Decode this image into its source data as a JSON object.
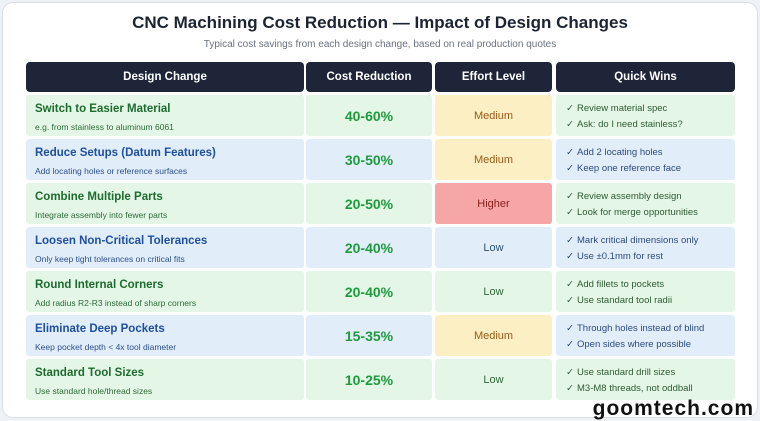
{
  "header": {
    "title": "CNC Machining Cost Reduction — Impact of Design Changes",
    "subtitle": "Typical cost savings from each design change, based on real production quotes"
  },
  "columns": [
    "Design Change",
    "Cost Reduction",
    "Effort Level",
    "Quick Wins"
  ],
  "check_glyph": "✓",
  "rows": [
    {
      "name": "Switch to Easier Material",
      "desc": "e.g. from stainless to aluminum 6061",
      "reduction": "40-60%",
      "effort": "Medium",
      "wins": [
        "Review material spec",
        "Ask: do I need stainless?"
      ]
    },
    {
      "name": "Reduce Setups (Datum Features)",
      "desc": "Add locating holes or reference surfaces",
      "reduction": "30-50%",
      "effort": "Medium",
      "wins": [
        "Add 2 locating holes",
        "Keep one reference face"
      ]
    },
    {
      "name": "Combine Multiple Parts",
      "desc": "Integrate assembly into fewer parts",
      "reduction": "20-50%",
      "effort": "Higher",
      "wins": [
        "Review assembly design",
        "Look for merge opportunities"
      ]
    },
    {
      "name": "Loosen Non-Critical Tolerances",
      "desc": "Only keep tight tolerances on critical fits",
      "reduction": "20-40%",
      "effort": "Low",
      "wins": [
        "Mark critical dimensions only",
        "Use ±0.1mm for rest"
      ]
    },
    {
      "name": "Round Internal Corners",
      "desc": "Add radius R2-R3 instead of sharp corners",
      "reduction": "20-40%",
      "effort": "Low",
      "wins": [
        "Add fillets to pockets",
        "Use standard tool radii"
      ]
    },
    {
      "name": "Eliminate Deep Pockets",
      "desc": "Keep pocket depth < 4x tool diameter",
      "reduction": "15-35%",
      "effort": "Medium",
      "wins": [
        "Through holes instead of blind",
        "Open sides where possible"
      ]
    },
    {
      "name": "Standard Tool Sizes",
      "desc": "Use standard hole/thread sizes",
      "reduction": "10-25%",
      "effort": "Low",
      "wins": [
        "Use standard drill sizes",
        "M3-M8 threads, not oddball"
      ]
    }
  ],
  "watermark": "goomtech.com",
  "colors": {
    "header_bg": "#1e2538",
    "reduction_text": "#1e9a3c",
    "row_green": "#e4f7e6",
    "row_blue": "#e1eefa",
    "effort_medium": "#fcefc4",
    "effort_higher": "#f7a6a6"
  }
}
